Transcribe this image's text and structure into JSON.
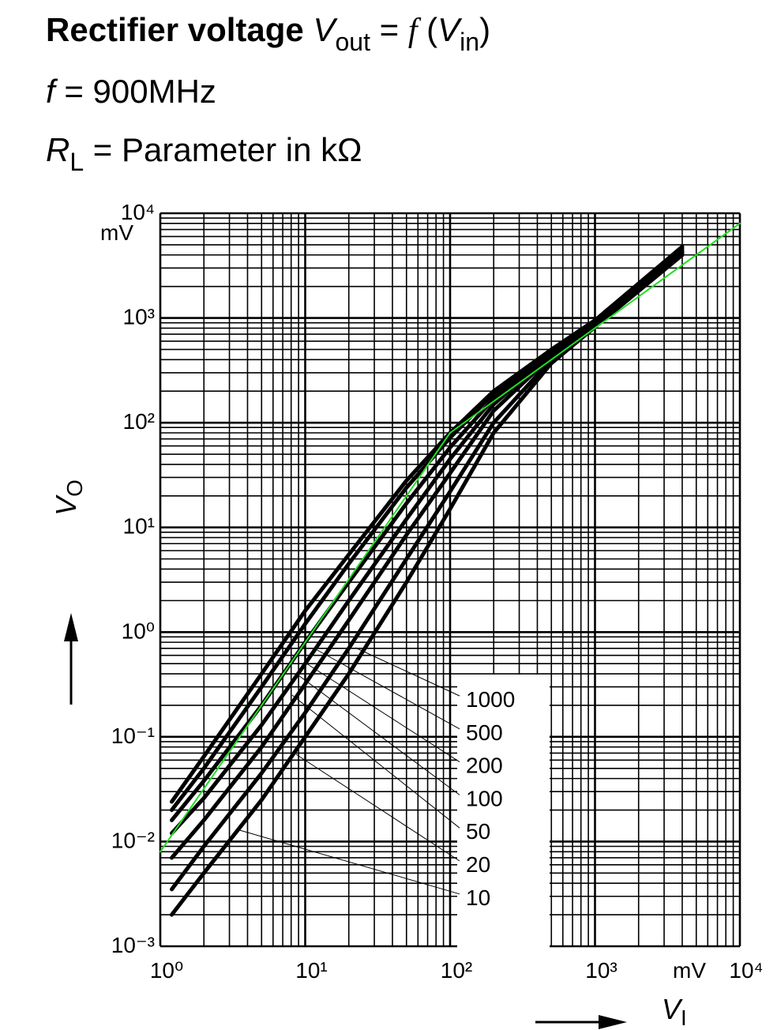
{
  "chart_data": {
    "type": "line",
    "title_parts": [
      "Rectifier voltage ",
      "V",
      "out",
      " = ",
      "f",
      " (",
      "V",
      "in",
      ")"
    ],
    "subtitle_parts": [
      "f",
      " = 900MHz"
    ],
    "parameter_parts": [
      "R",
      "L",
      " = Parameter in kΩ"
    ],
    "x_label": {
      "symbol": "V",
      "subscript": "I"
    },
    "y_label": {
      "symbol": "V",
      "subscript": "O"
    },
    "x_unit": "mV",
    "y_unit": "mV",
    "xscale": "log",
    "yscale": "log",
    "grid": true,
    "minor_grid": true,
    "xlim": [
      1,
      10000
    ],
    "ylim": [
      0.001,
      10000
    ],
    "xticks": [
      {
        "value": 1,
        "label": "10⁰"
      },
      {
        "value": 10,
        "label": "10¹"
      },
      {
        "value": 100,
        "label": "10²"
      },
      {
        "value": 1000,
        "label": "10³"
      },
      {
        "value": 10000,
        "label": "10⁴"
      }
    ],
    "yticks": [
      {
        "value": 0.001,
        "label": "10⁻³"
      },
      {
        "value": 0.01,
        "label": "10⁻²"
      },
      {
        "value": 0.1,
        "label": "10⁻¹"
      },
      {
        "value": 1,
        "label": "10⁰"
      },
      {
        "value": 10,
        "label": "10¹"
      },
      {
        "value": 100,
        "label": "10²"
      },
      {
        "value": 1000,
        "label": "10³"
      },
      {
        "value": 10000,
        "label": "10⁴"
      }
    ],
    "x": [
      1.2,
      2,
      5,
      10,
      20,
      50,
      100,
      200,
      500,
      1000,
      4000
    ],
    "series": [
      {
        "name": "1000",
        "color": "#000000",
        "values": [
          0.024,
          0.065,
          0.4,
          1.6,
          5.5,
          28,
          80,
          200,
          500,
          950,
          4800
        ]
      },
      {
        "name": "500",
        "color": "#000000",
        "values": [
          0.02,
          0.05,
          0.3,
          1.2,
          4.5,
          24,
          72,
          190,
          490,
          930,
          4600
        ]
      },
      {
        "name": "200",
        "color": "#000000",
        "values": [
          0.016,
          0.038,
          0.2,
          0.8,
          3,
          17,
          58,
          170,
          470,
          900,
          4400
        ]
      },
      {
        "name": "100",
        "color": "#000000",
        "values": [
          0.012,
          0.026,
          0.13,
          0.5,
          2,
          12,
          45,
          150,
          450,
          880,
          4300
        ]
      },
      {
        "name": "50",
        "color": "#000000",
        "values": [
          0.007,
          0.016,
          0.08,
          0.32,
          1.3,
          8.5,
          33,
          130,
          430,
          860,
          4200
        ]
      },
      {
        "name": "20",
        "color": "#000000",
        "values": [
          0.0035,
          0.009,
          0.045,
          0.17,
          0.7,
          5,
          22,
          100,
          400,
          840,
          4100
        ]
      },
      {
        "name": "10",
        "color": "#000000",
        "values": [
          0.002,
          0.005,
          0.025,
          0.1,
          0.4,
          3,
          15,
          80,
          370,
          820,
          4000
        ]
      }
    ],
    "reference_line": {
      "color": "#22dd22",
      "x": [
        1,
        100,
        10000
      ],
      "values": [
        0.008,
        80,
        8000
      ]
    }
  }
}
